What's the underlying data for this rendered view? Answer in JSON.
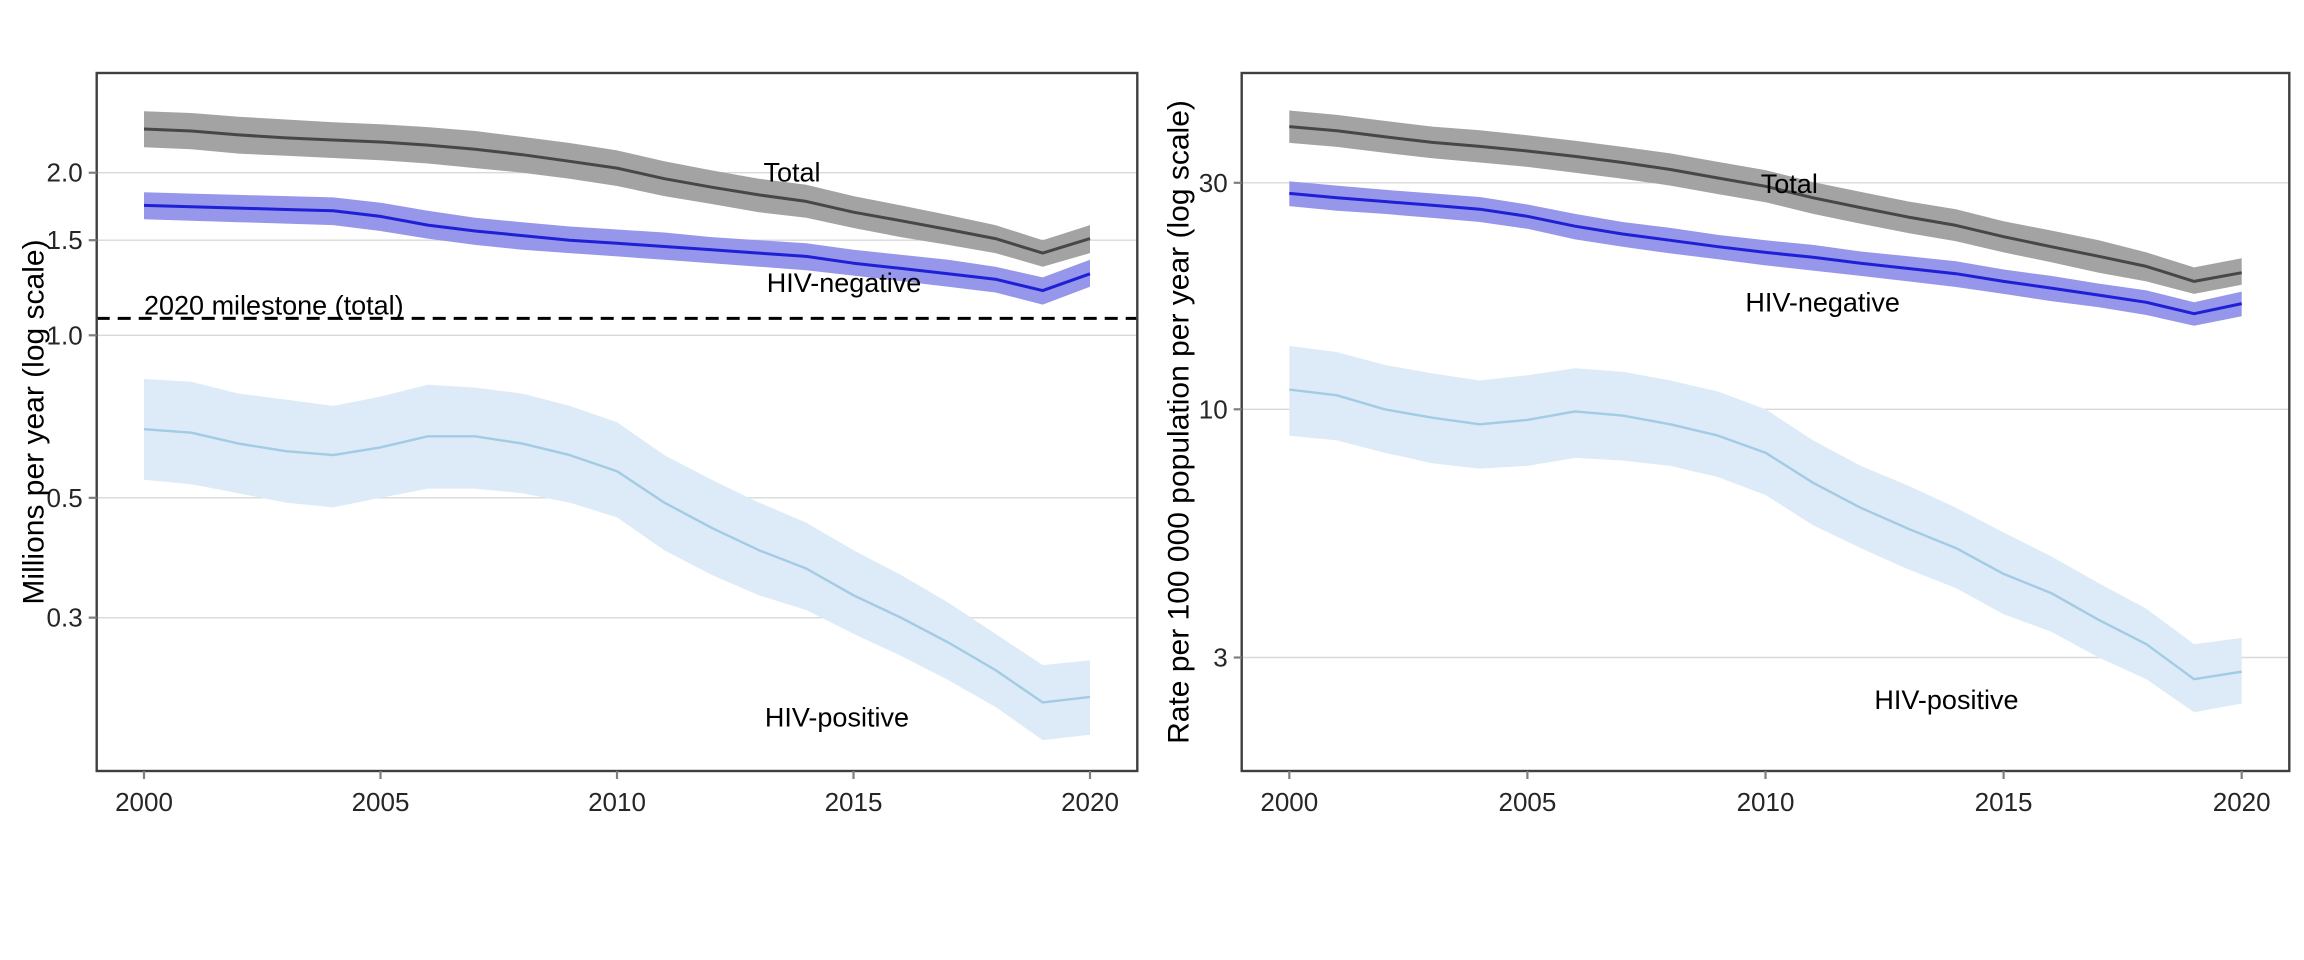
{
  "page": {
    "background": "#ffffff"
  },
  "chart_data": [
    {
      "id": "tb-deaths",
      "type": "line",
      "title": "",
      "xlabel": "",
      "ylabel": "Millions per year (log scale)",
      "x_scale": "linear",
      "y_scale": "log",
      "grid": "horizontal-only",
      "legend_position": "inline-annotations",
      "x": [
        2000,
        2001,
        2002,
        2003,
        2004,
        2005,
        2006,
        2007,
        2008,
        2009,
        2010,
        2011,
        2012,
        2013,
        2014,
        2015,
        2016,
        2017,
        2018,
        2019,
        2020
      ],
      "x_ticks": [
        2000,
        2005,
        2010,
        2015,
        2020
      ],
      "x_tick_labels": [
        "2000",
        "2005",
        "2010",
        "2015",
        "2020"
      ],
      "xlim": [
        1999,
        2021
      ],
      "y_ticks": [
        2.0,
        1.5,
        1.0,
        0.5,
        0.3
      ],
      "y_tick_labels": [
        "2.0",
        "1.5",
        "1.0",
        "0.5",
        "0.3"
      ],
      "ylim": [
        0.156,
        3.06
      ],
      "reference_line": {
        "label": "2020 milestone (total)",
        "value": 1.075,
        "style": "dashed",
        "color": "#000000"
      },
      "series": [
        {
          "name": "Total",
          "color": "#474747",
          "band_color": "#a3a3a3",
          "line_width": 3,
          "values": [
            2.41,
            2.39,
            2.35,
            2.32,
            2.3,
            2.28,
            2.25,
            2.21,
            2.16,
            2.1,
            2.04,
            1.95,
            1.88,
            1.82,
            1.77,
            1.69,
            1.63,
            1.57,
            1.51,
            1.42,
            1.51
          ],
          "hi": [
            2.6,
            2.58,
            2.54,
            2.51,
            2.48,
            2.46,
            2.43,
            2.39,
            2.33,
            2.27,
            2.2,
            2.1,
            2.02,
            1.95,
            1.9,
            1.81,
            1.74,
            1.67,
            1.6,
            1.5,
            1.6
          ],
          "lo": [
            2.23,
            2.21,
            2.17,
            2.15,
            2.13,
            2.11,
            2.08,
            2.04,
            2.0,
            1.95,
            1.89,
            1.81,
            1.75,
            1.69,
            1.65,
            1.58,
            1.52,
            1.47,
            1.42,
            1.34,
            1.42
          ]
        },
        {
          "name": "HIV-negative",
          "color": "#1f1fd6",
          "band_color": "#9696ea",
          "line_width": 3,
          "values": [
            1.74,
            1.73,
            1.72,
            1.71,
            1.7,
            1.66,
            1.6,
            1.56,
            1.53,
            1.5,
            1.48,
            1.46,
            1.44,
            1.42,
            1.4,
            1.36,
            1.33,
            1.3,
            1.27,
            1.21,
            1.3
          ],
          "hi": [
            1.84,
            1.83,
            1.82,
            1.81,
            1.8,
            1.76,
            1.7,
            1.65,
            1.62,
            1.59,
            1.57,
            1.55,
            1.52,
            1.5,
            1.48,
            1.44,
            1.41,
            1.38,
            1.34,
            1.28,
            1.38
          ],
          "lo": [
            1.64,
            1.63,
            1.62,
            1.61,
            1.6,
            1.56,
            1.51,
            1.47,
            1.44,
            1.42,
            1.4,
            1.38,
            1.36,
            1.34,
            1.32,
            1.29,
            1.26,
            1.23,
            1.2,
            1.14,
            1.23
          ]
        },
        {
          "name": "HIV-positive",
          "color": "#a2cbe4",
          "band_color": "#dcebf7",
          "line_width": 2.4,
          "values": [
            0.67,
            0.66,
            0.63,
            0.61,
            0.6,
            0.62,
            0.65,
            0.65,
            0.63,
            0.6,
            0.56,
            0.49,
            0.44,
            0.4,
            0.37,
            0.33,
            0.3,
            0.27,
            0.24,
            0.209,
            0.214
          ],
          "hi": [
            0.83,
            0.82,
            0.78,
            0.76,
            0.74,
            0.77,
            0.81,
            0.8,
            0.78,
            0.74,
            0.69,
            0.6,
            0.54,
            0.49,
            0.45,
            0.4,
            0.36,
            0.32,
            0.28,
            0.245,
            0.25
          ],
          "lo": [
            0.54,
            0.53,
            0.51,
            0.49,
            0.48,
            0.5,
            0.52,
            0.52,
            0.51,
            0.49,
            0.46,
            0.4,
            0.36,
            0.33,
            0.31,
            0.28,
            0.255,
            0.23,
            0.205,
            0.178,
            0.182
          ]
        }
      ],
      "annotations": [
        {
          "text": "Total",
          "year": 2013.7,
          "value": 2.0,
          "anchor": "middle"
        },
        {
          "text": "HIV-negative",
          "year": 2014.8,
          "value": 1.25,
          "anchor": "middle"
        },
        {
          "text": "HIV-positive",
          "year": 2014.65,
          "value": 0.196,
          "anchor": "middle"
        },
        {
          "text": "2020 milestone (total)",
          "year": 2000.0,
          "value": 1.135,
          "anchor": "start",
          "role": "reference-line-label"
        }
      ]
    },
    {
      "id": "tb-mortality-rate",
      "type": "line",
      "title": "",
      "xlabel": "",
      "ylabel": "Rate per 100 000 population per year (log scale)",
      "x_scale": "linear",
      "y_scale": "log",
      "grid": "horizontal-only",
      "legend_position": "inline-annotations",
      "x": [
        2000,
        2001,
        2002,
        2003,
        2004,
        2005,
        2006,
        2007,
        2008,
        2009,
        2010,
        2011,
        2012,
        2013,
        2014,
        2015,
        2016,
        2017,
        2018,
        2019,
        2020
      ],
      "x_ticks": [
        2000,
        2005,
        2010,
        2015,
        2020
      ],
      "x_tick_labels": [
        "2000",
        "2005",
        "2010",
        "2015",
        "2020"
      ],
      "xlim": [
        1999,
        2021
      ],
      "y_ticks": [
        30,
        10,
        3
      ],
      "y_tick_labels": [
        "30",
        "10",
        "3"
      ],
      "ylim": [
        1.73,
        51.1
      ],
      "series": [
        {
          "name": "Total",
          "color": "#474747",
          "band_color": "#a3a3a3",
          "line_width": 3,
          "values": [
            39.4,
            38.6,
            37.5,
            36.5,
            35.8,
            35.0,
            34.1,
            33.1,
            32.0,
            30.7,
            29.5,
            27.9,
            26.6,
            25.4,
            24.4,
            23.1,
            22.0,
            21.0,
            20.0,
            18.6,
            19.4
          ],
          "hi": [
            42.6,
            41.7,
            40.5,
            39.4,
            38.7,
            37.8,
            36.8,
            35.7,
            34.6,
            33.2,
            31.9,
            30.1,
            28.7,
            27.4,
            26.4,
            24.9,
            23.8,
            22.7,
            21.4,
            19.9,
            20.8
          ],
          "lo": [
            36.4,
            35.7,
            34.7,
            33.8,
            33.1,
            32.4,
            31.5,
            30.6,
            29.6,
            28.4,
            27.3,
            25.8,
            24.6,
            23.5,
            22.6,
            21.4,
            20.4,
            19.4,
            18.6,
            17.5,
            18.3
          ]
        },
        {
          "name": "HIV-negative",
          "color": "#1f1fd6",
          "band_color": "#9696ea",
          "line_width": 3,
          "values": [
            28.5,
            27.9,
            27.4,
            26.9,
            26.4,
            25.5,
            24.3,
            23.4,
            22.7,
            22.0,
            21.4,
            20.9,
            20.3,
            19.8,
            19.3,
            18.6,
            18.0,
            17.4,
            16.8,
            15.9,
            16.7
          ],
          "hi": [
            30.2,
            29.6,
            29.0,
            28.5,
            28.0,
            27.0,
            25.8,
            24.8,
            24.1,
            23.3,
            22.7,
            22.2,
            21.5,
            21.0,
            20.5,
            19.7,
            19.1,
            18.4,
            17.8,
            16.8,
            17.7
          ],
          "lo": [
            26.8,
            26.2,
            25.8,
            25.3,
            24.8,
            24.0,
            22.8,
            22.0,
            21.3,
            20.7,
            20.1,
            19.6,
            19.1,
            18.6,
            18.1,
            17.5,
            16.9,
            16.4,
            15.8,
            15.0,
            15.7
          ]
        },
        {
          "name": "HIV-positive",
          "color": "#a2cbe4",
          "band_color": "#dcebf7",
          "line_width": 2.4,
          "values": [
            11.0,
            10.7,
            10.0,
            9.6,
            9.3,
            9.5,
            9.9,
            9.7,
            9.3,
            8.8,
            8.1,
            7.0,
            6.2,
            5.6,
            5.1,
            4.5,
            4.1,
            3.6,
            3.2,
            2.7,
            2.8
          ],
          "hi": [
            13.6,
            13.2,
            12.4,
            11.9,
            11.5,
            11.8,
            12.2,
            12.0,
            11.5,
            10.9,
            10.0,
            8.6,
            7.6,
            6.9,
            6.2,
            5.5,
            4.9,
            4.3,
            3.8,
            3.2,
            3.3
          ],
          "lo": [
            8.8,
            8.6,
            8.1,
            7.7,
            7.5,
            7.6,
            7.9,
            7.8,
            7.6,
            7.2,
            6.6,
            5.7,
            5.1,
            4.6,
            4.2,
            3.7,
            3.4,
            3.0,
            2.7,
            2.3,
            2.4
          ]
        }
      ],
      "annotations": [
        {
          "text": "Total",
          "year": 2010.5,
          "value": 29.8,
          "anchor": "middle"
        },
        {
          "text": "HIV-negative",
          "year": 2011.2,
          "value": 16.8,
          "anchor": "middle"
        },
        {
          "text": "HIV-positive",
          "year": 2013.8,
          "value": 2.44,
          "anchor": "middle"
        }
      ]
    }
  ],
  "style": {
    "gridline_color": "#d9d9d9",
    "frame_color": "#3f3f3f",
    "tick_color": "#7f7f7f",
    "tick_label_color": "#262626",
    "axis_title_color": "#000000",
    "annotation_color": "#000000"
  }
}
